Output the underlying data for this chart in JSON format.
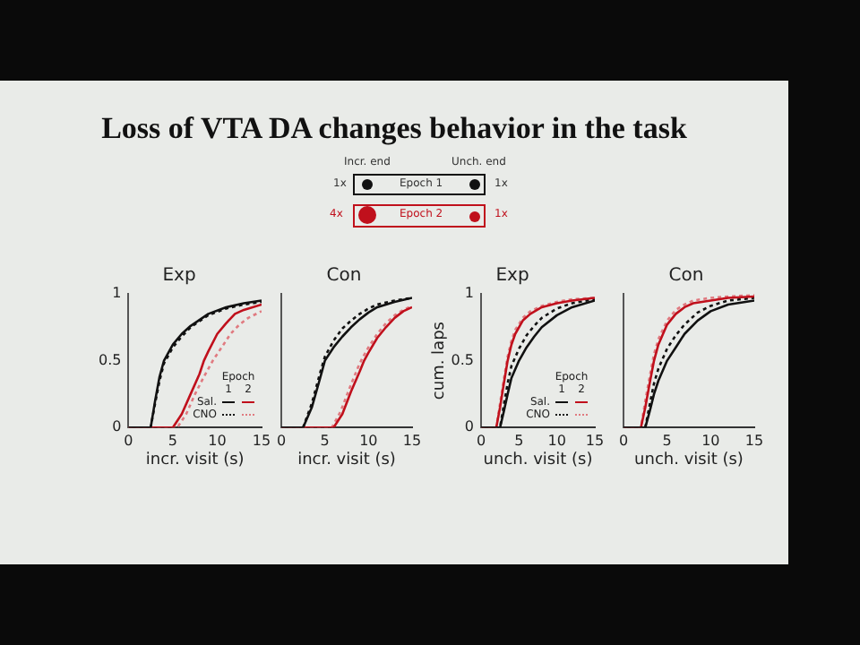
{
  "chart_data": [
    {
      "type": "other",
      "title": "Loss of VTA DA changes behavior in the task",
      "annotations": [
        "Incr. end",
        "Unch. end",
        "1x",
        "Epoch 1",
        "1x",
        "4x",
        "Epoch 2",
        "1x"
      ]
    },
    {
      "type": "line",
      "title": "Exp",
      "xlabel": "incr. visit (s)",
      "xlim": [
        0,
        15
      ],
      "xticks": [
        0,
        5,
        10,
        15
      ],
      "ylim": [
        0,
        1
      ],
      "yticks": [
        0,
        0.5,
        1
      ],
      "grid": false,
      "marker": "none",
      "legend_title": "Epoch",
      "annotations": [
        "Sal.",
        "CNO",
        "1",
        "2"
      ],
      "series": [
        {
          "color": "#111111",
          "line_style": "solid",
          "x": [
            0,
            2.5,
            3,
            3.5,
            4,
            5,
            6,
            7,
            9,
            11,
            13,
            15
          ],
          "values": [
            0,
            0,
            0.2,
            0.38,
            0.5,
            0.62,
            0.7,
            0.76,
            0.85,
            0.9,
            0.93,
            0.95
          ]
        },
        {
          "color": "#c0101c",
          "line_style": "solid",
          "x": [
            0,
            5,
            6,
            7,
            8,
            8.5,
            9,
            10,
            11,
            12,
            13,
            15
          ],
          "values": [
            0,
            0,
            0.1,
            0.25,
            0.4,
            0.5,
            0.57,
            0.7,
            0.78,
            0.85,
            0.88,
            0.92
          ]
        },
        {
          "color": "#111111",
          "line_style": "dotted",
          "x": [
            0,
            2.5,
            3,
            3.5,
            4,
            5,
            6,
            7,
            9,
            11,
            13,
            15
          ],
          "values": [
            0,
            0,
            0.18,
            0.35,
            0.48,
            0.6,
            0.68,
            0.75,
            0.84,
            0.89,
            0.92,
            0.94
          ]
        },
        {
          "color": "#e07a80",
          "line_style": "dotted",
          "x": [
            0,
            5.5,
            6.5,
            7.5,
            8.5,
            9.5,
            10.5,
            11.5,
            12.5,
            13.5,
            15
          ],
          "values": [
            0,
            0,
            0.1,
            0.25,
            0.38,
            0.5,
            0.6,
            0.7,
            0.77,
            0.82,
            0.87
          ]
        }
      ]
    },
    {
      "type": "line",
      "title": "Con",
      "xlabel": "incr. visit (s)",
      "xlim": [
        0,
        15
      ],
      "xticks": [
        0,
        5,
        10,
        15
      ],
      "ylim": [
        0,
        1
      ],
      "tick_labels": "x",
      "grid": false,
      "marker": "none",
      "series": [
        {
          "color": "#111111",
          "line_style": "solid",
          "x": [
            0,
            2.5,
            3.5,
            4.5,
            5,
            6,
            7,
            8,
            9,
            10,
            11,
            13,
            15
          ],
          "values": [
            0,
            0,
            0.15,
            0.38,
            0.5,
            0.6,
            0.68,
            0.75,
            0.81,
            0.86,
            0.9,
            0.94,
            0.97
          ]
        },
        {
          "color": "#c0101c",
          "line_style": "solid",
          "x": [
            0,
            6,
            7,
            8,
            9,
            9.5,
            10,
            11,
            12,
            13,
            14,
            15
          ],
          "values": [
            0,
            0,
            0.1,
            0.27,
            0.42,
            0.5,
            0.56,
            0.67,
            0.75,
            0.82,
            0.87,
            0.9
          ]
        },
        {
          "color": "#111111",
          "line_style": "dotted",
          "x": [
            0,
            2.5,
            3.5,
            4.5,
            5,
            6,
            7,
            8,
            9,
            10,
            11,
            13,
            15
          ],
          "values": [
            0,
            0,
            0.18,
            0.42,
            0.53,
            0.65,
            0.74,
            0.8,
            0.85,
            0.89,
            0.92,
            0.95,
            0.97
          ]
        },
        {
          "color": "#e07a80",
          "line_style": "dotted",
          "x": [
            0,
            5.8,
            6.8,
            7.8,
            8.8,
            9.3,
            10,
            11,
            12,
            13,
            14,
            15
          ],
          "values": [
            0,
            0,
            0.12,
            0.29,
            0.45,
            0.52,
            0.6,
            0.7,
            0.78,
            0.84,
            0.88,
            0.91
          ]
        }
      ]
    },
    {
      "type": "line",
      "title": "Exp",
      "xlabel": "unch. visit (s)",
      "ylabel": "cum. laps",
      "xlim": [
        0,
        15
      ],
      "xticks": [
        0,
        5,
        10,
        15
      ],
      "ylim": [
        0,
        1
      ],
      "yticks": [
        0,
        0.5,
        1
      ],
      "grid": false,
      "marker": "none",
      "legend_title": "Epoch",
      "annotations": [
        "Sal.",
        "CNO",
        "1",
        "2"
      ],
      "series": [
        {
          "color": "#111111",
          "line_style": "solid",
          "x": [
            0,
            2.5,
            3,
            3.5,
            4,
            5,
            6,
            7,
            8,
            10,
            12,
            15
          ],
          "values": [
            0,
            0,
            0.12,
            0.25,
            0.37,
            0.5,
            0.6,
            0.68,
            0.75,
            0.84,
            0.9,
            0.95
          ]
        },
        {
          "color": "#c0101c",
          "line_style": "solid",
          "x": [
            0,
            2,
            2.5,
            3,
            3.5,
            4,
            4.5,
            5.5,
            6.5,
            8,
            10,
            12,
            15
          ],
          "values": [
            0,
            0,
            0.15,
            0.33,
            0.5,
            0.62,
            0.7,
            0.8,
            0.85,
            0.9,
            0.93,
            0.95,
            0.97
          ]
        },
        {
          "color": "#111111",
          "line_style": "dotted",
          "x": [
            0,
            2.5,
            3,
            3.5,
            4,
            5,
            6,
            7,
            8,
            10,
            12,
            15
          ],
          "values": [
            0,
            0,
            0.17,
            0.33,
            0.46,
            0.59,
            0.69,
            0.76,
            0.82,
            0.89,
            0.93,
            0.96
          ]
        },
        {
          "color": "#e07a80",
          "line_style": "dotted",
          "x": [
            0,
            2,
            2.5,
            3,
            3.5,
            4,
            4.5,
            5.5,
            6.5,
            8,
            10,
            12,
            15
          ],
          "values": [
            0,
            0,
            0.18,
            0.36,
            0.53,
            0.65,
            0.73,
            0.82,
            0.87,
            0.91,
            0.94,
            0.96,
            0.97
          ]
        }
      ]
    },
    {
      "type": "line",
      "title": "Con",
      "xlabel": "unch. visit (s)",
      "xlim": [
        0,
        15
      ],
      "xticks": [
        0,
        5,
        10,
        15
      ],
      "ylim": [
        0,
        1
      ],
      "tick_labels": "x",
      "grid": false,
      "marker": "none",
      "series": [
        {
          "color": "#111111",
          "line_style": "solid",
          "x": [
            0,
            2.5,
            3,
            3.5,
            4,
            5,
            6,
            7,
            8.5,
            10,
            12,
            15
          ],
          "values": [
            0,
            0,
            0.12,
            0.25,
            0.35,
            0.5,
            0.6,
            0.7,
            0.8,
            0.87,
            0.92,
            0.95
          ]
        },
        {
          "color": "#c0101c",
          "line_style": "solid",
          "x": [
            0,
            2,
            2.5,
            3,
            3.5,
            4,
            5,
            6,
            7,
            8,
            10,
            12,
            15
          ],
          "values": [
            0,
            0,
            0.15,
            0.33,
            0.5,
            0.62,
            0.77,
            0.85,
            0.9,
            0.93,
            0.95,
            0.97,
            0.98
          ]
        },
        {
          "color": "#111111",
          "line_style": "dotted",
          "x": [
            0,
            2.5,
            3,
            3.5,
            4,
            5,
            6,
            7,
            8.5,
            10,
            12,
            15
          ],
          "values": [
            0,
            0,
            0.17,
            0.33,
            0.44,
            0.59,
            0.69,
            0.77,
            0.86,
            0.91,
            0.95,
            0.97
          ]
        },
        {
          "color": "#e07a80",
          "line_style": "dotted",
          "x": [
            0,
            2,
            2.5,
            3,
            3.5,
            4,
            5,
            6,
            7,
            8,
            10,
            12,
            15
          ],
          "values": [
            0,
            0,
            0.2,
            0.38,
            0.55,
            0.66,
            0.8,
            0.88,
            0.92,
            0.95,
            0.97,
            0.98,
            0.99
          ]
        }
      ]
    }
  ]
}
